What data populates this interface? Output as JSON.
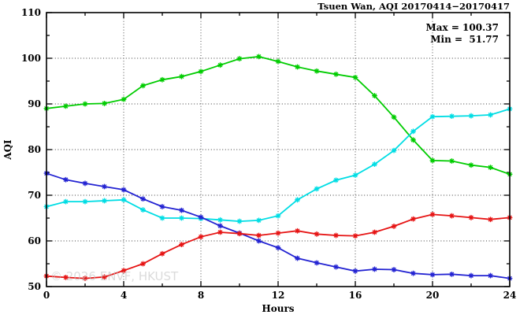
{
  "watermark": "© 2026 ENVF, HKUST",
  "chart_data": {
    "type": "line",
    "title": "Tsuen Wan, AQI 20170414−20170417",
    "xlabel": "Hours",
    "ylabel": "AQI",
    "xlim": [
      0,
      24
    ],
    "ylim": [
      50,
      110
    ],
    "x_major_ticks": [
      0,
      4,
      8,
      12,
      16,
      20,
      24
    ],
    "x_minor_tick_step": 2,
    "y_major_ticks": [
      50,
      60,
      70,
      80,
      90,
      100,
      110
    ],
    "y_minor_tick_step": 5,
    "grid": "dotted-at-major-ticks",
    "legend_position": "top-right-inside",
    "annotations": [
      {
        "label": "Max = 100.37",
        "value": 100.37
      },
      {
        "label": "Min =  51.77",
        "value": 51.77
      }
    ],
    "x": [
      0,
      1,
      2,
      3,
      4,
      5,
      6,
      7,
      8,
      9,
      10,
      11,
      12,
      13,
      14,
      15,
      16,
      17,
      18,
      19,
      20,
      21,
      22,
      23,
      24
    ],
    "series": [
      {
        "name": "green",
        "color": "#00cc00",
        "marker": "asterisk",
        "values": [
          89.0,
          89.5,
          90.0,
          90.1,
          91.0,
          94.0,
          95.3,
          96.0,
          97.1,
          98.5,
          99.9,
          100.37,
          99.3,
          98.1,
          97.2,
          96.5,
          95.8,
          91.8,
          87.1,
          82.1,
          77.6,
          77.5,
          76.6,
          76.1,
          74.6
        ]
      },
      {
        "name": "cyan",
        "color": "#00dde4",
        "marker": "asterisk",
        "values": [
          67.5,
          68.6,
          68.6,
          68.8,
          69.0,
          66.8,
          65.0,
          65.0,
          64.9,
          64.6,
          64.3,
          64.5,
          65.5,
          69.0,
          71.4,
          73.3,
          74.4,
          76.8,
          79.8,
          84.0,
          87.2,
          87.3,
          87.4,
          87.6,
          88.9
        ]
      },
      {
        "name": "blue",
        "color": "#2323d2",
        "marker": "asterisk",
        "values": [
          74.8,
          73.4,
          72.6,
          71.9,
          71.2,
          69.2,
          67.5,
          66.7,
          65.2,
          63.3,
          61.7,
          60.0,
          58.5,
          56.2,
          55.2,
          54.3,
          53.4,
          53.8,
          53.7,
          52.9,
          52.6,
          52.7,
          52.4,
          52.4,
          51.8
        ]
      },
      {
        "name": "red",
        "color": "#e61414",
        "marker": "asterisk",
        "values": [
          52.3,
          52.0,
          51.8,
          52.1,
          53.5,
          55.0,
          57.2,
          59.2,
          60.9,
          61.9,
          61.6,
          61.2,
          61.7,
          62.2,
          61.5,
          61.2,
          61.1,
          61.9,
          63.2,
          64.8,
          65.8,
          65.5,
          65.1,
          64.7,
          65.1
        ]
      }
    ]
  }
}
